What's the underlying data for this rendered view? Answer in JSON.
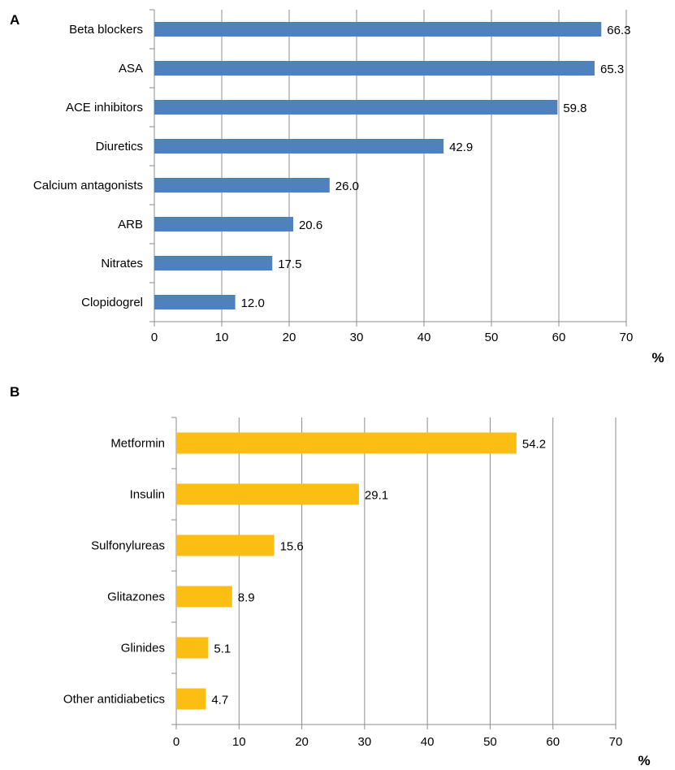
{
  "chart_data": [
    {
      "type": "bar",
      "orientation": "horizontal",
      "panel": "A",
      "categories": [
        "Beta blockers",
        "ASA",
        "ACE inhibitors",
        "Diuretics",
        "Calcium antagonists",
        "ARB",
        "Nitrates",
        "Clopidogrel"
      ],
      "values": [
        66.3,
        65.3,
        59.8,
        42.9,
        26.0,
        20.6,
        17.5,
        12.0
      ],
      "value_labels": [
        "66.3",
        "65.3",
        "59.8",
        "42.9",
        "26.0",
        "20.6",
        "17.5",
        "12.0"
      ],
      "xlim": [
        0,
        70
      ],
      "x_ticks": [
        "0",
        "10",
        "20",
        "30",
        "40",
        "50",
        "60",
        "70"
      ],
      "xlabel": "%",
      "grid": "vertical",
      "bar_color": "#4F81BD"
    },
    {
      "type": "bar",
      "orientation": "horizontal",
      "panel": "B",
      "categories": [
        "Metformin",
        "Insulin",
        "Sulfonylureas",
        "Glitazones",
        "Glinides",
        "Other antidiabetics"
      ],
      "values": [
        54.2,
        29.1,
        15.6,
        8.9,
        5.1,
        4.7
      ],
      "value_labels": [
        "54.2",
        "29.1",
        "15.6",
        "8.9",
        "5.1",
        "4.7"
      ],
      "xlim": [
        0,
        70
      ],
      "x_ticks": [
        "0",
        "10",
        "20",
        "30",
        "40",
        "50",
        "60",
        "70"
      ],
      "xlabel": "%",
      "grid": "vertical",
      "bar_color": "#FDBE14"
    }
  ]
}
